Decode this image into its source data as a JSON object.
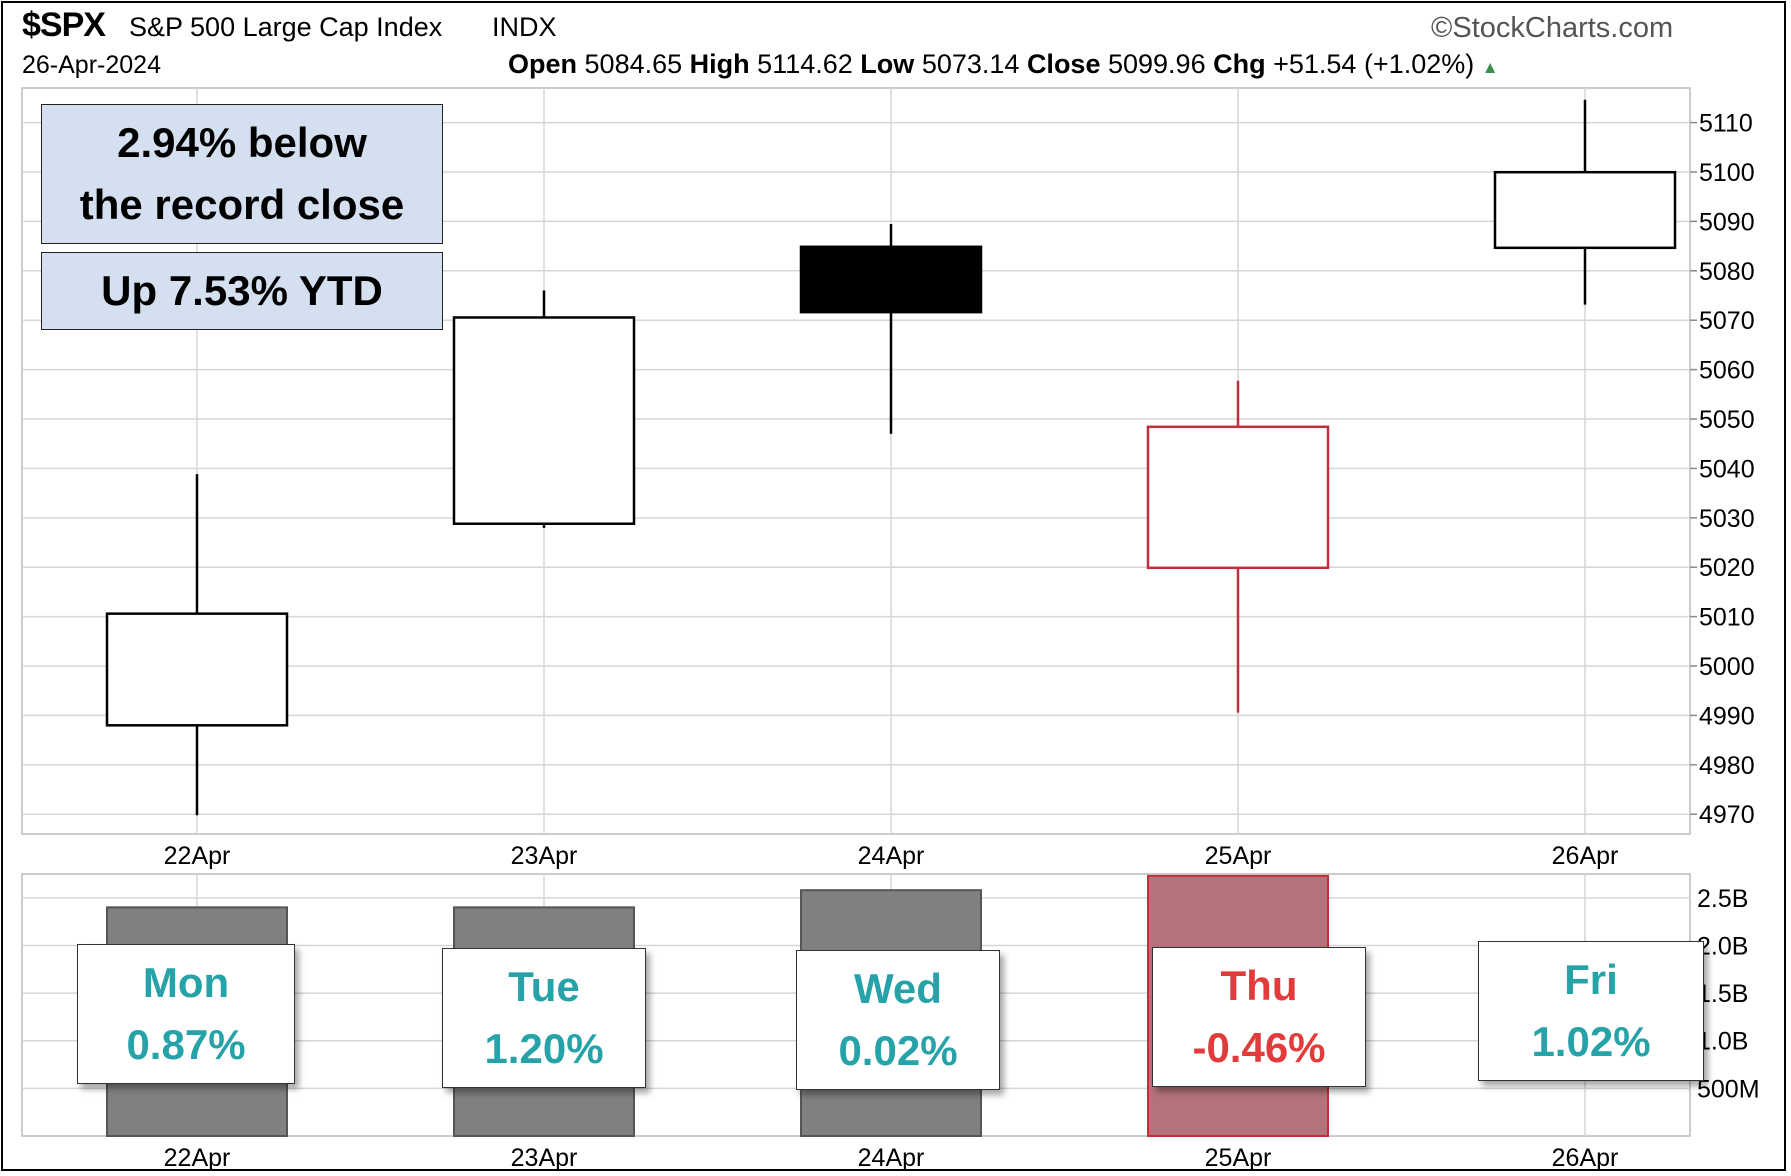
{
  "header": {
    "symbol": "$SPX",
    "name": "S&P 500 Large Cap Index",
    "exchange": "INDX",
    "brand": "©StockCharts.com",
    "date": "26-Apr-2024",
    "open_label": "Open",
    "open": "5084.65",
    "high_label": "High",
    "high": "5114.62",
    "low_label": "Low",
    "low": "5073.14",
    "close_label": "Close",
    "close": "5099.96",
    "chg_label": "Chg",
    "chg": "+51.54 (+1.02%)",
    "chg_direction_icon": "triangle-up-icon"
  },
  "notes": {
    "record": [
      "2.94% below",
      "the record close"
    ],
    "ytd": "Up 7.53% YTD"
  },
  "days": [
    {
      "day": "Mon",
      "pct": "0.87%",
      "color": "#25a3a8"
    },
    {
      "day": "Tue",
      "pct": "1.20%",
      "color": "#25a3a8"
    },
    {
      "day": "Wed",
      "pct": "0.02%",
      "color": "#25a3a8"
    },
    {
      "day": "Thu",
      "pct": "-0.46%",
      "color": "#e23b3b"
    },
    {
      "day": "Fri",
      "pct": "1.02%",
      "color": "#25a3a8"
    }
  ],
  "colors": {
    "up": "#ffffff",
    "down": "#000000",
    "red": "#c0303c",
    "volume": "#808080",
    "volume_red": "#b4737a"
  },
  "chart_data": [
    {
      "type": "candlestick",
      "categories": [
        "22Apr",
        "23Apr",
        "24Apr",
        "25Apr",
        "26Apr"
      ],
      "candles": [
        {
          "open": 4988,
          "high": 5038.84,
          "low": 4969.8,
          "close": 5010.6,
          "style": "up"
        },
        {
          "open": 5028.8,
          "high": 5076,
          "low": 5027.96,
          "close": 5070.55,
          "style": "up"
        },
        {
          "open": 5084.86,
          "high": 5089.48,
          "low": 5047,
          "close": 5071.63,
          "style": "down"
        },
        {
          "open": 5019.88,
          "high": 5057.75,
          "low": 4990.58,
          "close": 5048.42,
          "style": "red"
        },
        {
          "open": 5084.65,
          "high": 5114.62,
          "low": 5073.14,
          "close": 5099.96,
          "style": "up"
        }
      ],
      "ylim": [
        4966,
        5117
      ],
      "yticks": [
        4970,
        4980,
        4990,
        5000,
        5010,
        5020,
        5030,
        5040,
        5050,
        5060,
        5070,
        5080,
        5090,
        5100,
        5110
      ],
      "grid": true
    },
    {
      "type": "bar",
      "categories": [
        "22Apr",
        "23Apr",
        "24Apr",
        "25Apr",
        "26Apr"
      ],
      "values": [
        2.4,
        2.4,
        2.58,
        2.73,
        0
      ],
      "value_units": "B",
      "styles": [
        "normal",
        "normal",
        "normal",
        "red",
        "normal"
      ],
      "ylim": [
        0,
        2.75
      ],
      "yticks": [
        {
          "value": 0.5,
          "label": "500M"
        },
        {
          "value": 1.0,
          "label": "1.0B"
        },
        {
          "value": 1.5,
          "label": "1.5B"
        },
        {
          "value": 2.0,
          "label": "2.0B"
        },
        {
          "value": 2.5,
          "label": "2.5B"
        }
      ],
      "grid": true
    }
  ]
}
